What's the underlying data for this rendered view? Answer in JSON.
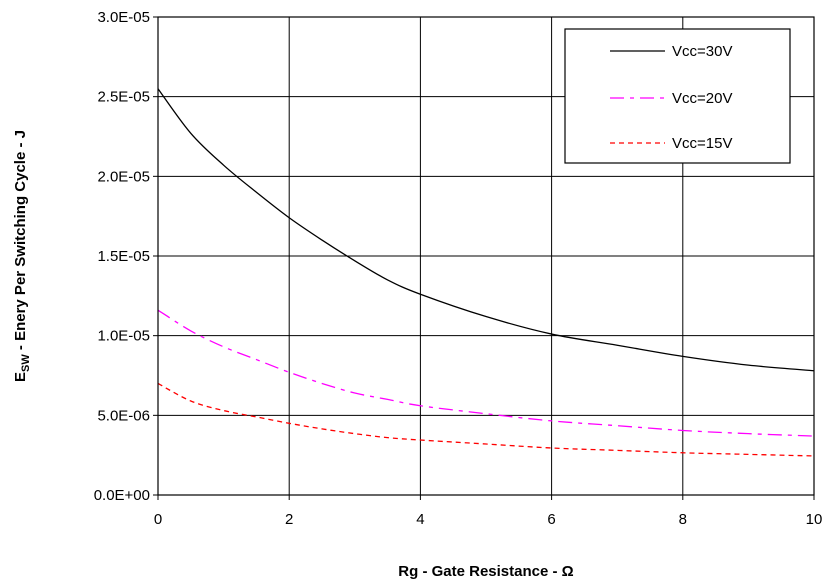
{
  "chart_data": {
    "type": "line",
    "title": "",
    "xlabel": "Rg  - Gate Resistance - Ω",
    "ylabel": {
      "main": "E",
      "subscript": "SW",
      "rest": " - Enery Per Switching Cycle - J"
    },
    "xlim": [
      0,
      10
    ],
    "ylim": [
      0,
      3e-05
    ],
    "x_ticks": [
      0,
      2,
      4,
      6,
      8,
      10
    ],
    "x_tick_labels": [
      "0",
      "2",
      "4",
      "6",
      "8",
      "10"
    ],
    "y_ticks": [
      0,
      5e-06,
      1e-05,
      1.5e-05,
      2e-05,
      2.5e-05,
      3e-05
    ],
    "y_tick_labels": [
      "0.0E+00",
      "5.0E-06",
      "1.0E-05",
      "1.5E-05",
      "2.0E-05",
      "2.5E-05",
      "3.0E-05"
    ],
    "grid": true,
    "legend_position": "top-right",
    "series": [
      {
        "name": "Vcc=30V",
        "color": "#000000",
        "dash": "solid",
        "x": [
          0,
          0.5,
          1,
          1.5,
          2,
          2.5,
          3,
          3.5,
          4,
          5,
          6,
          7,
          8,
          9,
          10
        ],
        "y": [
          2.55e-05,
          2.27e-05,
          2.07e-05,
          1.9e-05,
          1.74e-05,
          1.6e-05,
          1.47e-05,
          1.35e-05,
          1.26e-05,
          1.12e-05,
          1.01e-05,
          9.4e-06,
          8.7e-06,
          8.15e-06,
          7.8e-06
        ]
      },
      {
        "name": "Vcc=20V",
        "color": "#ff00ff",
        "dash": "longdash",
        "x": [
          0,
          0.5,
          1,
          1.5,
          2,
          2.5,
          3,
          3.5,
          4,
          5,
          6,
          7,
          8,
          9,
          10
        ],
        "y": [
          1.16e-05,
          1.03e-05,
          9.3e-06,
          8.5e-06,
          7.7e-06,
          7e-06,
          6.4e-06,
          6e-06,
          5.6e-06,
          5.1e-06,
          4.65e-06,
          4.35e-06,
          4.05e-06,
          3.85e-06,
          3.7e-06
        ]
      },
      {
        "name": "Vcc=15V",
        "color": "#ff0000",
        "dash": "shortdash",
        "x": [
          0,
          0.5,
          1,
          1.5,
          2,
          2.5,
          3,
          3.5,
          4,
          5,
          6,
          7,
          8,
          9,
          10
        ],
        "y": [
          7e-06,
          5.9e-06,
          5.3e-06,
          4.9e-06,
          4.5e-06,
          4.15e-06,
          3.85e-06,
          3.6e-06,
          3.45e-06,
          3.2e-06,
          2.95e-06,
          2.8e-06,
          2.65e-06,
          2.55e-06,
          2.45e-06
        ]
      }
    ]
  }
}
